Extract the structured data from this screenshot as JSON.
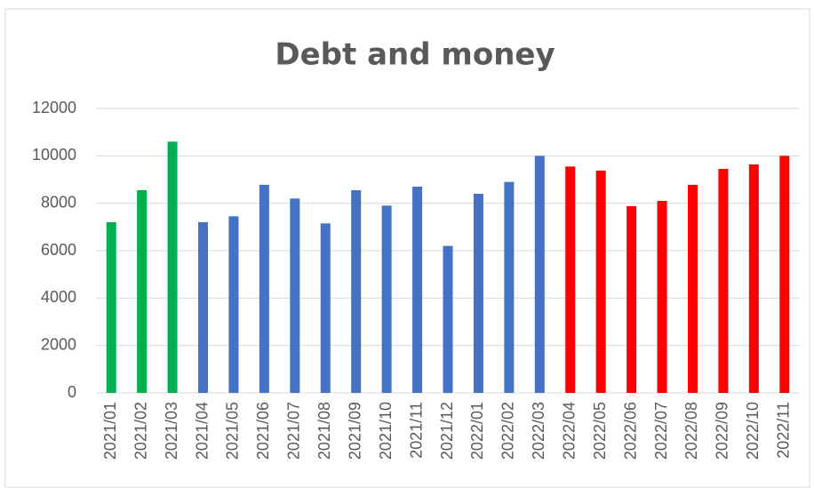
{
  "chart_data": {
    "type": "bar",
    "title": "Debt and money",
    "categories": [
      "2021/01",
      "2021/02",
      "2021/03",
      "2021/04",
      "2021/05",
      "2021/06",
      "2021/07",
      "2021/08",
      "2021/09",
      "2021/10",
      "2021/11",
      "2021/12",
      "2022/01",
      "2022/02",
      "2022/03",
      "2022/04",
      "2022/05",
      "2022/06",
      "2022/07",
      "2022/08",
      "2022/09",
      "2022/10",
      "2022/11"
    ],
    "values": [
      7200,
      8550,
      10600,
      7200,
      7450,
      8780,
      8200,
      7150,
      8550,
      7900,
      8700,
      6200,
      8400,
      8900,
      10000,
      9550,
      9380,
      7880,
      8100,
      8780,
      9450,
      9640,
      10000
    ],
    "colors": [
      "#00b050",
      "#00b050",
      "#00b050",
      "#4472c4",
      "#4472c4",
      "#4472c4",
      "#4472c4",
      "#4472c4",
      "#4472c4",
      "#4472c4",
      "#4472c4",
      "#4472c4",
      "#4472c4",
      "#4472c4",
      "#4472c4",
      "#ff0000",
      "#ff0000",
      "#ff0000",
      "#ff0000",
      "#ff0000",
      "#ff0000",
      "#ff0000",
      "#ff0000"
    ],
    "ylim": [
      0,
      12000
    ],
    "yticks": [
      0,
      2000,
      4000,
      6000,
      8000,
      10000,
      12000
    ],
    "grid": true
  }
}
